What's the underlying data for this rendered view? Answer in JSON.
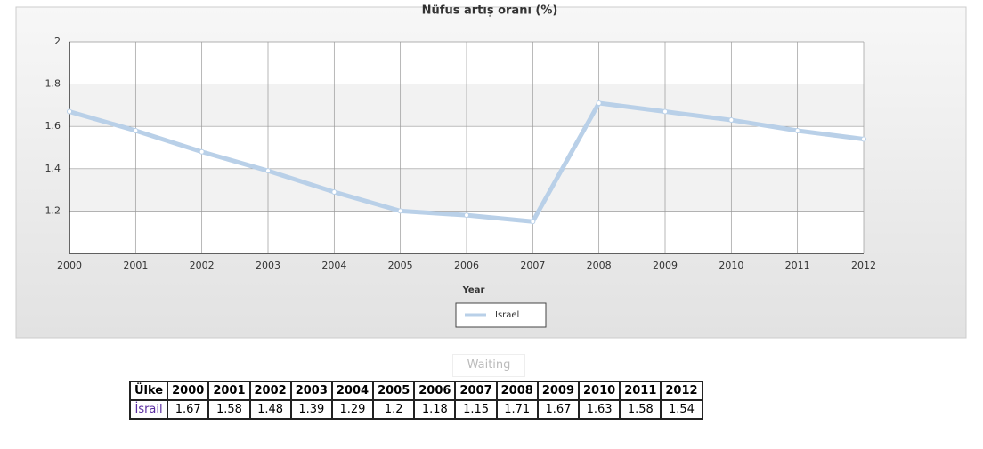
{
  "chart_data": {
    "type": "line",
    "title": "Nüfus artış oranı (%)",
    "x_label": "Year",
    "categories": [
      "2000",
      "2001",
      "2002",
      "2003",
      "2004",
      "2005",
      "2006",
      "2007",
      "2008",
      "2009",
      "2010",
      "2011",
      "2012"
    ],
    "series": [
      {
        "name": "Israel",
        "color": "#b9d0e8",
        "values": [
          1.67,
          1.58,
          1.48,
          1.39,
          1.29,
          1.2,
          1.18,
          1.15,
          1.71,
          1.67,
          1.63,
          1.58,
          1.54
        ]
      }
    ],
    "ylim": [
      1,
      2
    ],
    "yticks": [
      1.2,
      1.4,
      1.6,
      1.8,
      2
    ],
    "grid": true,
    "legend": "bottom"
  },
  "status": "Waiting",
  "table": {
    "header": "Ülke",
    "row_label": "İsrail"
  }
}
